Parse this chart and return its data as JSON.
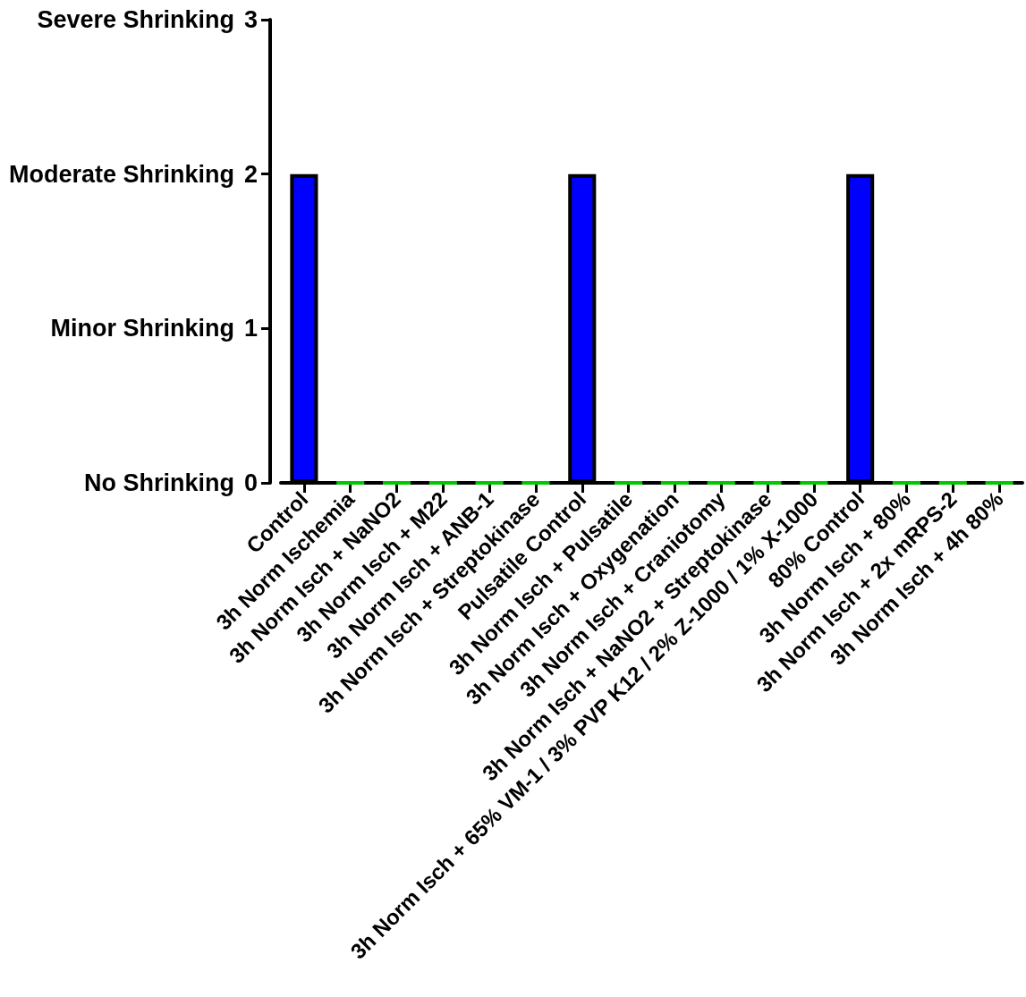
{
  "chart_data": {
    "type": "bar",
    "categories": [
      "Control",
      "3h Norm Ischemia",
      "3h Norm Isch + NaNO2",
      "3h Norm Isch + M22",
      "3h Norm Isch + ANB-1",
      "3h Norm Isch + Streptokinase",
      "Pulsatile Control",
      "3h Norm Isch + Pulsatile",
      "3h Norm Isch + Oxygenation",
      "3h Norm Isch + Craniotomy",
      "3h Norm Isch + NaNO2 + Streptokinase",
      "3h Norm Isch + 65% VM-1 / 3% PVP K12 / 2% Z-1000 / 1% X-1000",
      "80% Control",
      "3h Norm Isch + 80%",
      "3h Norm Isch + 2x mRPS-2",
      "3h Norm Isch + 4h 80%"
    ],
    "values": [
      2,
      0,
      0,
      0,
      0,
      0,
      2,
      0,
      0,
      0,
      0,
      0,
      2,
      0,
      0,
      0
    ],
    "colors": [
      "#0000ff",
      "#00c800",
      "#00c800",
      "#00c800",
      "#00c800",
      "#00c800",
      "#0000ff",
      "#00c800",
      "#00c800",
      "#00c800",
      "#00c800",
      "#00c800",
      "#0000ff",
      "#00c800",
      "#00c800",
      "#00c800"
    ],
    "ylim": [
      0,
      3
    ],
    "yticks": [
      0,
      1,
      2,
      3
    ],
    "annotations": [
      "No Shrinking",
      "Minor Shrinking",
      "Moderate Shrinking",
      "Severe Shrinking"
    ],
    "grid": false
  }
}
